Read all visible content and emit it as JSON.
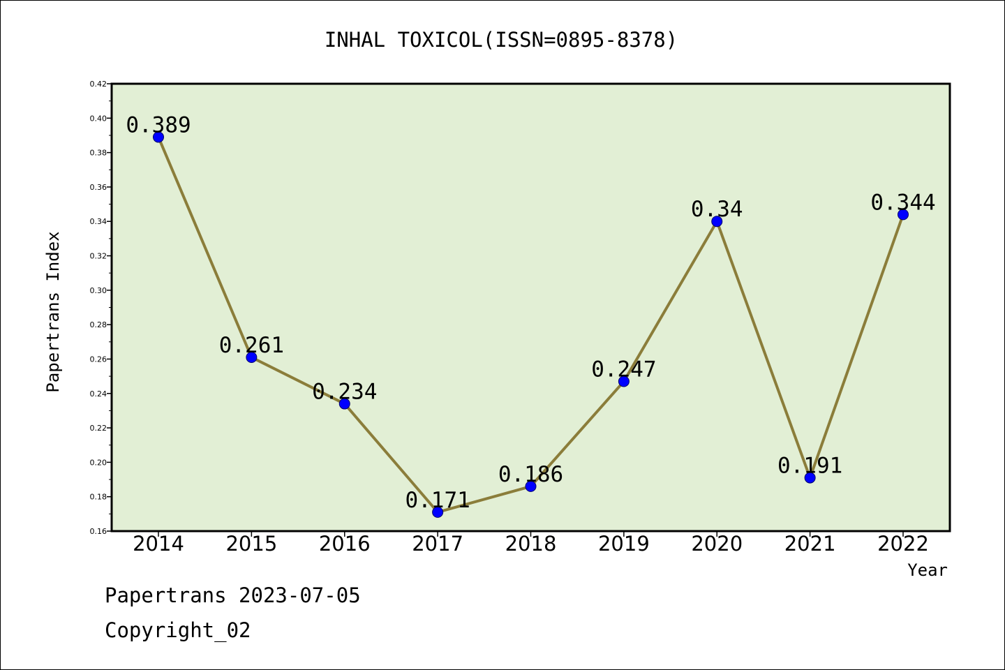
{
  "chart_data": {
    "type": "line",
    "title": "INHAL TOXICOL(ISSN=0895-8378)",
    "xlabel": "Year",
    "ylabel": "Papertrans Index",
    "categories": [
      "2014",
      "2015",
      "2016",
      "2017",
      "2018",
      "2019",
      "2020",
      "2021",
      "2022"
    ],
    "values": [
      0.389,
      0.261,
      0.234,
      0.171,
      0.186,
      0.247,
      0.34,
      0.191,
      0.344
    ],
    "data_labels": [
      "0.389",
      "0.261",
      "0.234",
      "0.171",
      "0.186",
      "0.247",
      "0.34",
      "0.191",
      "0.344"
    ],
    "ylim": [
      0.16,
      0.42
    ],
    "yticks": [
      "0.16",
      "0.18",
      "0.20",
      "0.22",
      "0.24",
      "0.26",
      "0.28",
      "0.30",
      "0.32",
      "0.34",
      "0.36",
      "0.38",
      "0.40",
      "0.42"
    ],
    "grid": false,
    "colors": {
      "plot_background": "#e2efd5",
      "line": "#8b7d3a",
      "marker": "#0000ff"
    }
  },
  "footer": {
    "line1": "Papertrans 2023-07-05",
    "line2": "Copyright_02"
  }
}
